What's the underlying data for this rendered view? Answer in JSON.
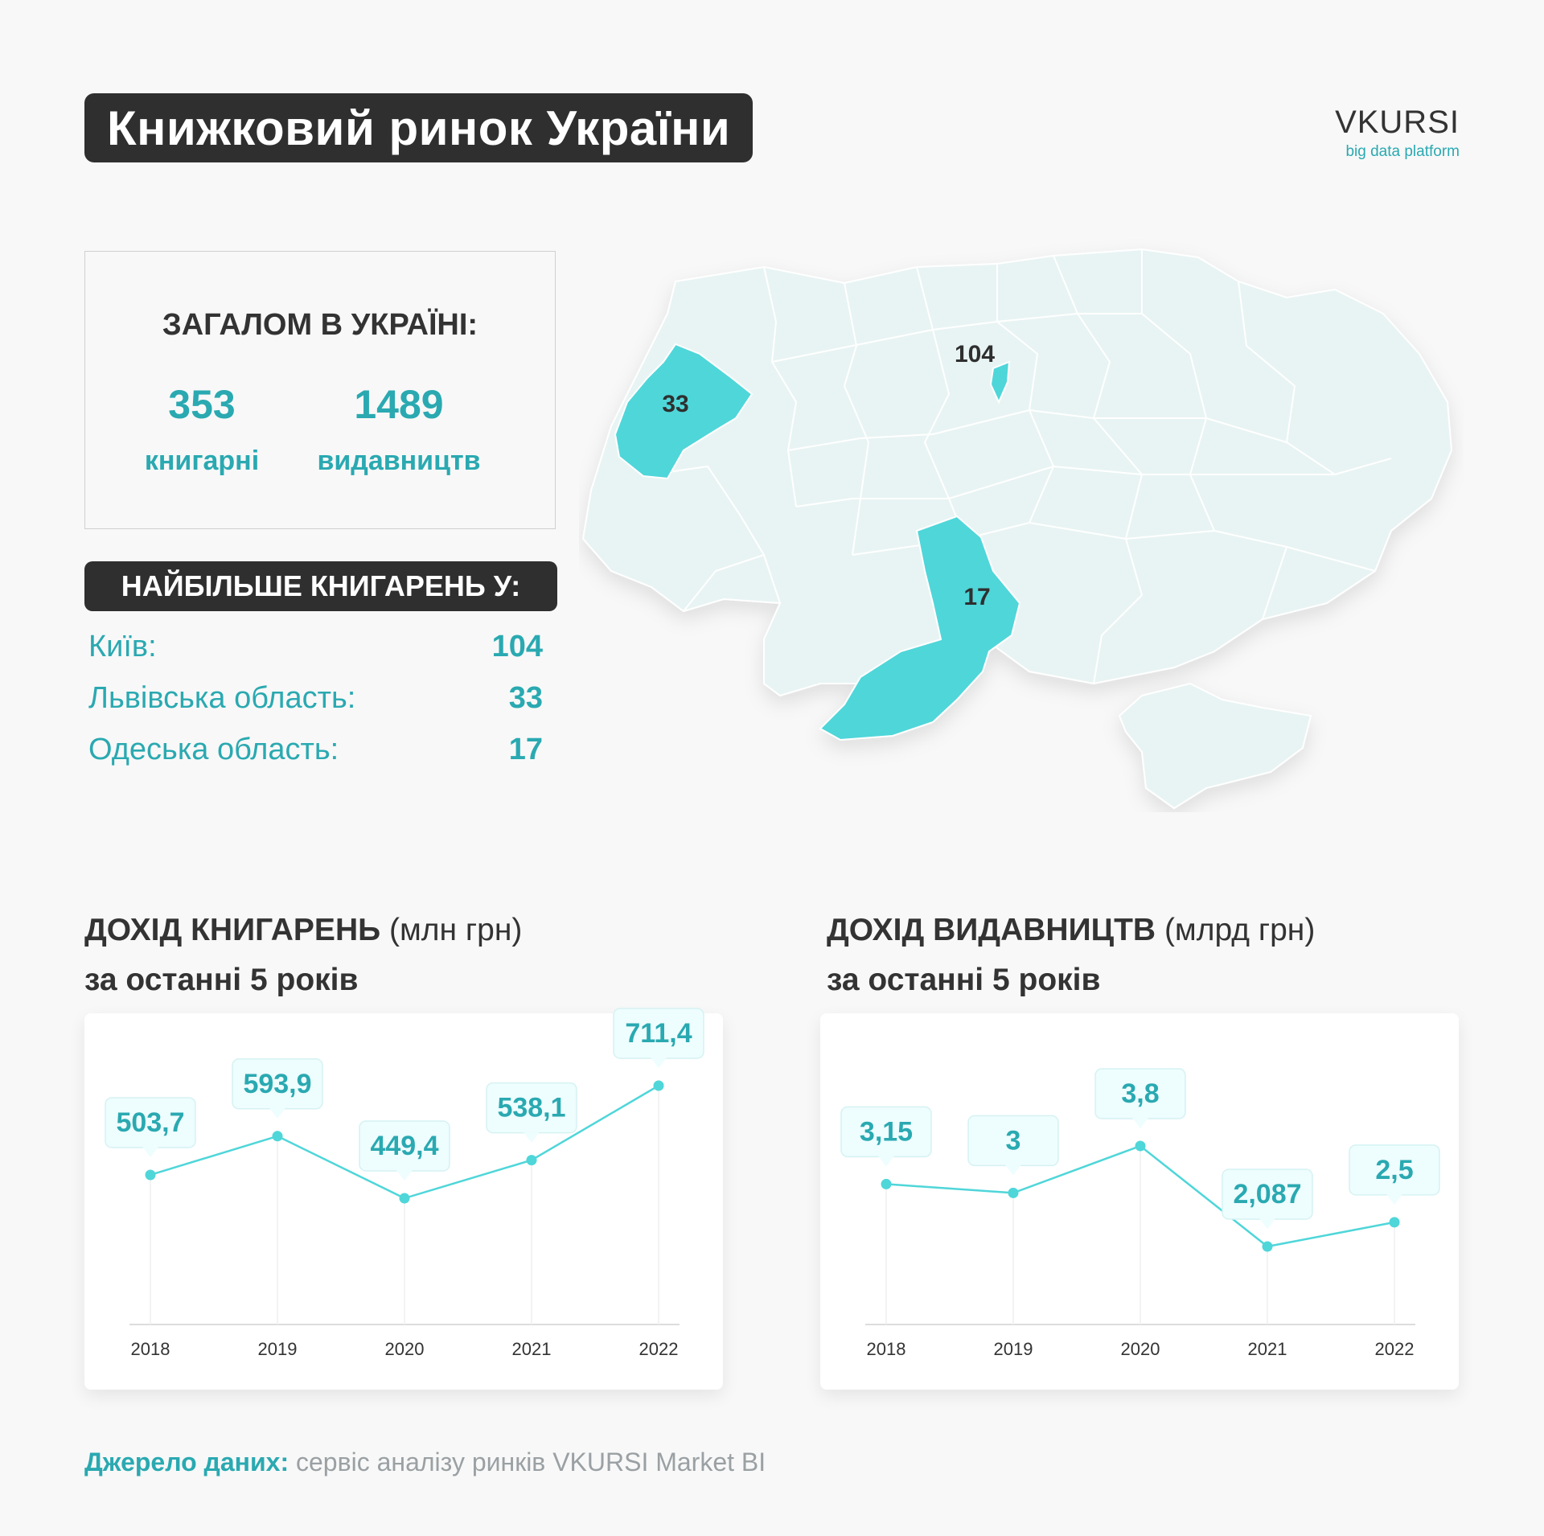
{
  "header": {
    "title": "Книжковий ринок України",
    "logo_name": "VKURSI",
    "logo_tagline": "big data platform"
  },
  "totals": {
    "heading": "ЗАГАЛОМ В УКРАЇНІ:",
    "bookstores_value": "353",
    "bookstores_label": "книгарні",
    "publishers_value": "1489",
    "publishers_label": "видавництв"
  },
  "top_regions": {
    "heading": "НАЙБІЛЬШЕ КНИГАРЕНЬ У:",
    "items": [
      {
        "name": "Київ:",
        "count": "104"
      },
      {
        "name": "Львівська область:",
        "count": "33"
      },
      {
        "name": "Одеська область:",
        "count": "17"
      }
    ]
  },
  "map": {
    "labels": {
      "kyiv": "104",
      "lviv": "33",
      "odesa": "17"
    },
    "colors": {
      "base": "#e8f4f3",
      "border": "#ffffff",
      "highlight": "#4fd6d9"
    }
  },
  "charts": {
    "bookstores": {
      "title": "ДОХІД КНИГАРЕНЬ",
      "unit": "(млн грн)",
      "subtitle": "за останні 5 років"
    },
    "publishers": {
      "title": "ДОХІД ВИДАВНИЦТВ",
      "unit": "(млрд грн)",
      "subtitle": "за останні 5 років"
    }
  },
  "chart_data": [
    {
      "type": "line",
      "title": "ДОХІД КНИГАРЕНЬ (млн грн) за останні 5 років",
      "categories": [
        "2018",
        "2019",
        "2020",
        "2021",
        "2022"
      ],
      "values": [
        503.7,
        593.9,
        449.4,
        538.1,
        711.4
      ],
      "labels": [
        "503,7",
        "593,9",
        "449,4",
        "538,1",
        "711,4"
      ],
      "grid": false,
      "color": "#4fd6d9"
    },
    {
      "type": "line",
      "title": "ДОХІД ВИДАВНИЦТВ (млрд грн) за останні 5 років",
      "categories": [
        "2018",
        "2019",
        "2020",
        "2021",
        "2022"
      ],
      "values": [
        3.15,
        3,
        3.8,
        2.087,
        2.5
      ],
      "labels": [
        "3,15",
        "3",
        "3,8",
        "2,087",
        "2,5"
      ],
      "grid": false,
      "color": "#4fd6d9"
    }
  ],
  "source": {
    "label": "Джерело даних:",
    "text": "сервіс аналізу ринків VKURSI Market BI"
  }
}
